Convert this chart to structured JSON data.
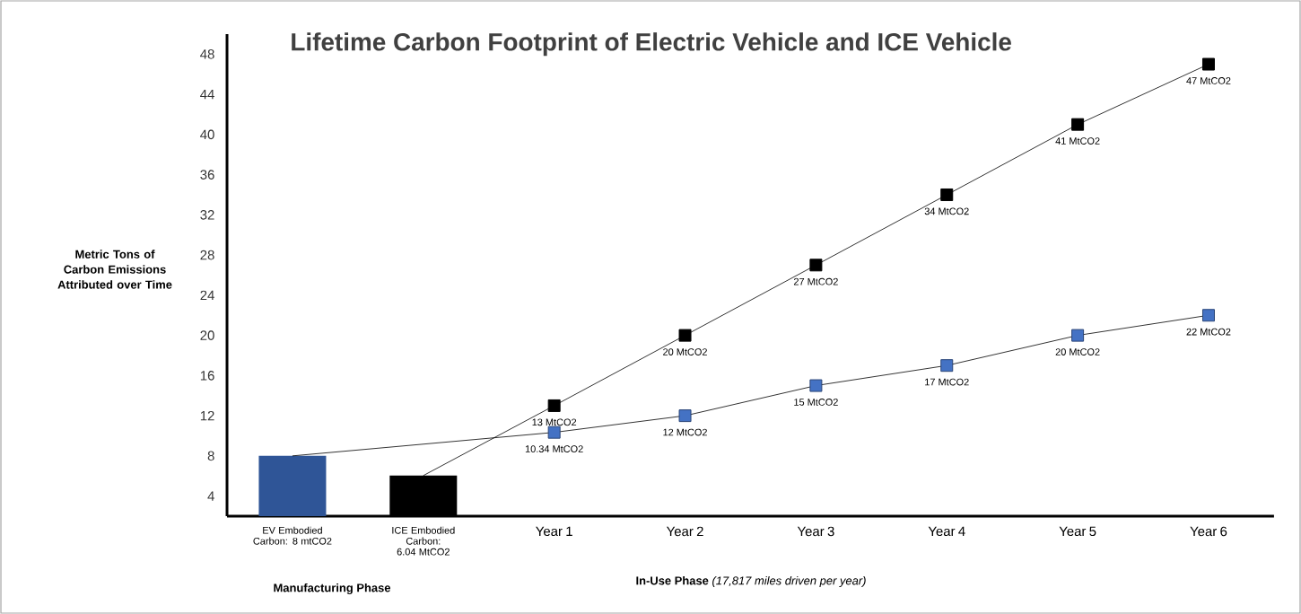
{
  "chart_data": {
    "type": "bar",
    "title": "Lifetime Carbon Footprint of Electric Vehicle and ICE Vehicle",
    "ylabel": "Metric Tons of Carbon Emissions Attributed over Time",
    "categories": [
      "EV Embodied Carbon: 8 mtCO2",
      "ICE Embodied Carbon: 6.04 MtCO2",
      "Year 1",
      "Year 2",
      "Year 3",
      "Year 4",
      "Year 5",
      "Year 6"
    ],
    "series": [
      {
        "colors": [
          "#2f5597",
          "#000000",
          null,
          null,
          null,
          null,
          null,
          null
        ],
        "values": [
          8,
          6.04,
          null,
          null,
          null,
          null,
          null,
          null
        ]
      },
      {
        "type": "line",
        "color": "#4472c4",
        "values": [
          8,
          null,
          10.34,
          12,
          15,
          17,
          20,
          22
        ],
        "value_labels": [
          null,
          null,
          "10.34 MtCO2",
          "12 MtCO2",
          "15 MtCO2",
          "17 MtCO2",
          "20 MtCO2",
          "22 MtCO2"
        ]
      },
      {
        "type": "line",
        "color": "#000000",
        "values": [
          null,
          6.04,
          13,
          20,
          27,
          34,
          41,
          47
        ],
        "value_labels": [
          null,
          null,
          "13 MtCO2",
          "20 MtCO2",
          "27 MtCO2",
          "34 MtCO2",
          "41 MtCO2",
          "47 MtCO2"
        ]
      }
    ],
    "ylim": [
      2,
      50
    ],
    "yticks": [
      4,
      8,
      12,
      16,
      20,
      24,
      28,
      32,
      36,
      40,
      44,
      48
    ],
    "grid": false,
    "marker": "square",
    "line_style": "solid",
    "annotations": [
      "Manufacturing Phase",
      "**In-Use Phase** *(17,817 miles driven per year)*"
    ]
  }
}
